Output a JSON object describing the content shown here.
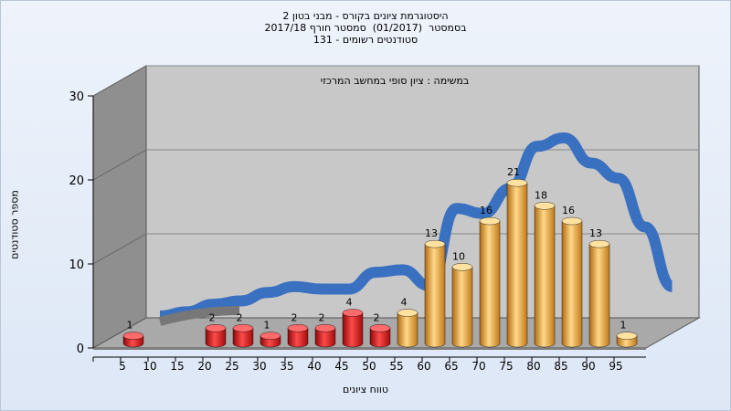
{
  "chart_data": {
    "type": "bar",
    "title_lines": [
      "היסטוגרמת ציונים בקורס - מבני בטון 2",
      "בסמסטר  (01/2017)  סמסטר חורף 2017/18",
      "סטודנטים רשומים - 131"
    ],
    "annotation": "במשימה : ציון סופי במחשב המרכזי",
    "xlabel": "טווח ציונים",
    "ylabel": "מספר סטודנטים",
    "categories": [
      "5",
      "10",
      "15",
      "20",
      "25",
      "30",
      "35",
      "40",
      "45",
      "50",
      "55",
      "60",
      "65",
      "70",
      "75",
      "80",
      "85",
      "90",
      "95"
    ],
    "values": [
      1,
      0,
      0,
      2,
      2,
      1,
      2,
      2,
      4,
      2,
      4,
      13,
      10,
      16,
      21,
      18,
      16,
      13,
      1
    ],
    "bar_colors": [
      "red",
      "red",
      "red",
      "red",
      "red",
      "red",
      "red",
      "red",
      "red",
      "red",
      "orange",
      "orange",
      "orange",
      "orange",
      "orange",
      "orange",
      "orange",
      "orange",
      "orange"
    ],
    "curve_values": [
      0,
      0.5,
      1.4,
      1.8,
      2.8,
      3.5,
      3.2,
      3.2,
      5.2,
      5.5,
      3.6,
      12.8,
      12.2,
      15.2,
      20.2,
      21.2,
      18.2,
      16.4,
      10.6,
      3.5
    ],
    "ylim": [
      0,
      30
    ],
    "yticks": [
      0,
      10,
      20,
      30
    ],
    "grid": true
  },
  "colors": {
    "bar_red": "#d42020",
    "bar_orange": "#e3a02e",
    "curve_blue": "#3a70c0",
    "wall": "#c8c8c8",
    "side_wall": "#8f8f8f",
    "floor": "#a9a9a9"
  }
}
